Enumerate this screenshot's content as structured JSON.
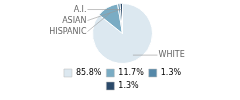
{
  "chart_data": {
    "type": "pie",
    "categories": [
      "WHITE",
      "HISPANIC",
      "ASIAN",
      "A.I."
    ],
    "values": [
      85.8,
      11.7,
      1.3,
      1.3
    ],
    "value_labels": [
      "85.8%",
      "11.7%",
      "1.3%",
      "1.3%"
    ],
    "colors": [
      "#dce8f0",
      "#7aacc4",
      "#5588a8",
      "#2b4a6a"
    ],
    "legend": "bottom"
  }
}
